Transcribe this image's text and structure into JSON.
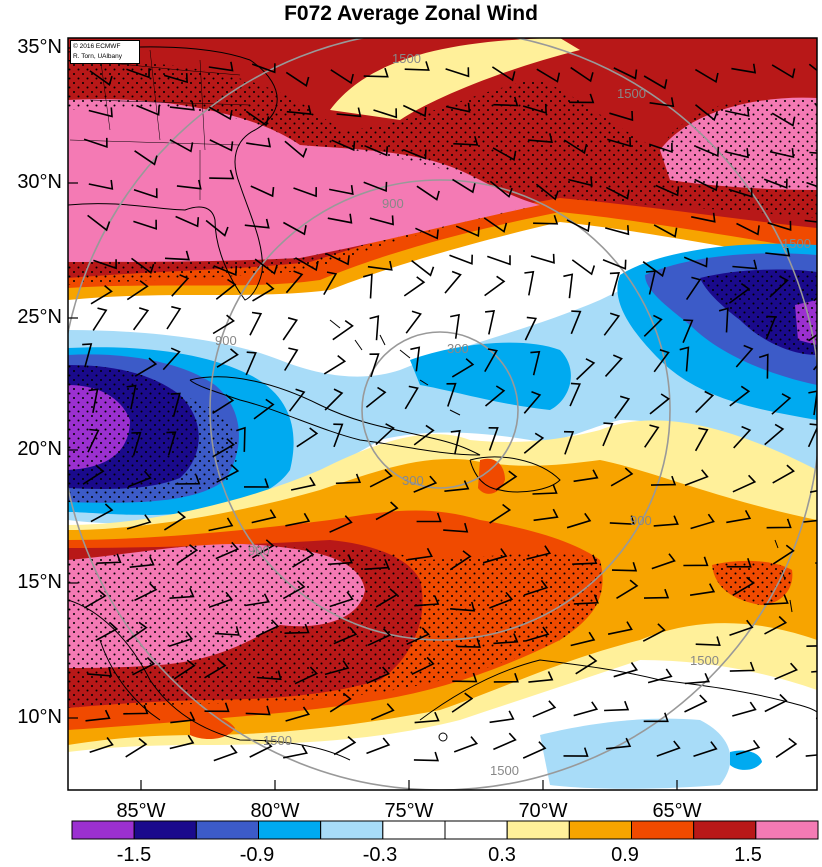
{
  "title": "F072 Average Zonal Wind",
  "credit": {
    "line1": "© 2016 ECMWF",
    "line2": "R. Torn, UAlbany"
  },
  "lat_labels": [
    "35°N",
    "30°N",
    "25°N",
    "20°N",
    "15°N",
    "10°N"
  ],
  "lon_labels": [
    "85°W",
    "80°W",
    "75°W",
    "70°W",
    "65°W"
  ],
  "range_rings": [
    "300",
    "900",
    "1500"
  ],
  "colorbar": {
    "colors": [
      "#9b30d0",
      "#1a0a8c",
      "#3c5bc8",
      "#00aaf0",
      "#a8dcf8",
      "#ffffff",
      "#ffffff",
      "#fff09a",
      "#f7a400",
      "#f04a00",
      "#b81818",
      "#f47ab4"
    ],
    "labels": [
      "-1.5",
      "-0.9",
      "-0.3",
      "0.3",
      "0.9",
      "1.5"
    ]
  }
}
